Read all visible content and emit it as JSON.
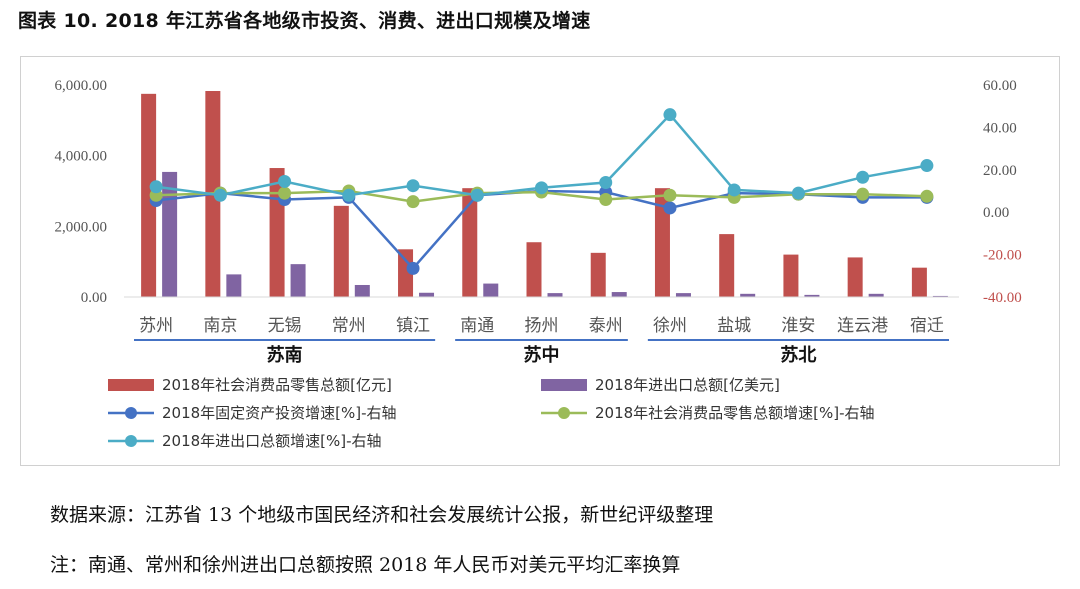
{
  "figure": {
    "title": "图表 10. 2018 年江苏省各地级市投资、消费、进出口规模及增速",
    "source": "数据来源：江苏省 13 个地级市国民经济和社会发展统计公报，新世纪评级整理",
    "footnote": "注：南通、常州和徐州进出口总额按照 2018 年人民币对美元平均汇率换算"
  },
  "chart_data": {
    "type": "bar",
    "categories": [
      "苏州",
      "南京",
      "无锡",
      "常州",
      "镇江",
      "南通",
      "扬州",
      "泰州",
      "徐州",
      "盐城",
      "淮安",
      "连云港",
      "宿迁"
    ],
    "region_groups": [
      {
        "label": "苏南",
        "categories": [
          "苏州",
          "南京",
          "无锡",
          "常州",
          "镇江"
        ]
      },
      {
        "label": "苏中",
        "categories": [
          "南通",
          "扬州",
          "泰州"
        ]
      },
      {
        "label": "苏北",
        "categories": [
          "徐州",
          "盐城",
          "淮安",
          "连云港",
          "宿迁"
        ]
      }
    ],
    "left_axis": {
      "ylim": [
        0,
        6000
      ],
      "ticks": [
        0,
        2000,
        4000,
        6000
      ],
      "tick_labels": [
        "0.00",
        "2,000.00",
        "4,000.00",
        "6,000.00"
      ],
      "color": "#555555"
    },
    "right_axis": {
      "ylim": [
        -40,
        60
      ],
      "ticks": [
        -40,
        -20,
        0,
        20,
        40,
        60
      ],
      "tick_labels": [
        "-40.00",
        "-20.00",
        "0.00",
        "20.00",
        "40.00",
        "60.00"
      ],
      "negative_color": "#c0504d",
      "positive_color": "#555555"
    },
    "bar_series": [
      {
        "name": "2018年社会消费品零售总额[亿元]",
        "axis": "left",
        "color": "#c0504d",
        "values": [
          5750,
          5830,
          3650,
          2580,
          1350,
          3080,
          1550,
          1250,
          3080,
          1780,
          1200,
          1120,
          830
        ]
      },
      {
        "name": "2018年进出口总额[亿美元]",
        "axis": "left",
        "color": "#8064a2",
        "values": [
          3540,
          640,
          930,
          340,
          120,
          380,
          110,
          140,
          110,
          90,
          60,
          90,
          30
        ]
      }
    ],
    "line_series": [
      {
        "name": "2018年固定资产投资增速[%]-右轴",
        "axis": "right",
        "color": "#4472c4",
        "values": [
          5.5,
          9.0,
          6.0,
          7.0,
          -26.5,
          8.0,
          10.0,
          9.5,
          2.0,
          9.0,
          8.5,
          7.0,
          7.0
        ]
      },
      {
        "name": "2018年社会消费品零售总额增速[%]-右轴",
        "axis": "right",
        "color": "#9bbb59",
        "values": [
          8.0,
          9.0,
          9.0,
          10.0,
          5.0,
          9.0,
          9.5,
          6.0,
          8.0,
          7.0,
          8.5,
          8.5,
          7.5
        ]
      },
      {
        "name": "2018年进出口总额增速[%]-右轴",
        "axis": "right",
        "color": "#4bacc6",
        "values": [
          12.0,
          8.0,
          14.5,
          8.0,
          12.5,
          8.0,
          11.5,
          14.0,
          46.0,
          10.5,
          9.0,
          16.5,
          22.0
        ]
      }
    ]
  }
}
